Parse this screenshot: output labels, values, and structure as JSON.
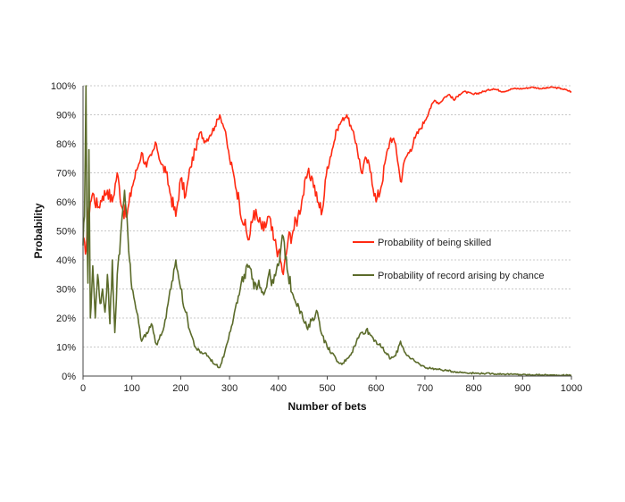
{
  "chart_data": {
    "type": "line",
    "xlabel": "Number of bets",
    "ylabel": "Probability",
    "xlim": [
      0,
      1000
    ],
    "ylim": [
      0,
      1
    ],
    "x_ticks": [
      0,
      100,
      200,
      300,
      400,
      500,
      600,
      700,
      800,
      900,
      1000
    ],
    "x_tick_labels": [
      "0",
      "100",
      "200",
      "300",
      "400",
      "500",
      "600",
      "700",
      "800",
      "900",
      "1000"
    ],
    "y_ticks": [
      0,
      0.1,
      0.2,
      0.3,
      0.4,
      0.5,
      0.6,
      0.7,
      0.8,
      0.9,
      1.0
    ],
    "y_tick_labels": [
      "0%",
      "10%",
      "20%",
      "30%",
      "40%",
      "50%",
      "60%",
      "70%",
      "80%",
      "90%",
      "100%"
    ],
    "grid": "horizontal",
    "legend_position": "right",
    "series": [
      {
        "name": "Probability of being skilled",
        "color": "#ff2a12",
        "x": [
          0,
          5,
          10,
          15,
          20,
          30,
          40,
          50,
          60,
          70,
          80,
          90,
          100,
          110,
          120,
          130,
          140,
          150,
          160,
          170,
          180,
          190,
          200,
          210,
          220,
          230,
          240,
          250,
          260,
          270,
          280,
          290,
          300,
          310,
          320,
          330,
          340,
          350,
          360,
          370,
          380,
          390,
          400,
          410,
          420,
          430,
          440,
          450,
          460,
          470,
          480,
          490,
          500,
          510,
          520,
          530,
          540,
          550,
          560,
          570,
          580,
          590,
          600,
          610,
          620,
          630,
          640,
          650,
          660,
          670,
          680,
          690,
          700,
          710,
          720,
          730,
          740,
          750,
          760,
          770,
          780,
          800,
          820,
          840,
          860,
          880,
          900,
          920,
          940,
          960,
          980,
          1000
        ],
        "y": [
          0.47,
          0.42,
          0.55,
          0.6,
          0.63,
          0.58,
          0.62,
          0.64,
          0.6,
          0.7,
          0.58,
          0.55,
          0.65,
          0.71,
          0.77,
          0.72,
          0.76,
          0.8,
          0.73,
          0.7,
          0.62,
          0.55,
          0.68,
          0.62,
          0.72,
          0.78,
          0.84,
          0.81,
          0.83,
          0.86,
          0.9,
          0.85,
          0.75,
          0.68,
          0.6,
          0.52,
          0.47,
          0.57,
          0.53,
          0.5,
          0.55,
          0.47,
          0.43,
          0.35,
          0.47,
          0.5,
          0.55,
          0.62,
          0.7,
          0.68,
          0.6,
          0.57,
          0.72,
          0.78,
          0.85,
          0.88,
          0.9,
          0.85,
          0.8,
          0.7,
          0.75,
          0.7,
          0.6,
          0.65,
          0.75,
          0.82,
          0.8,
          0.67,
          0.75,
          0.78,
          0.82,
          0.85,
          0.88,
          0.92,
          0.95,
          0.94,
          0.96,
          0.97,
          0.95,
          0.97,
          0.98,
          0.97,
          0.98,
          0.99,
          0.98,
          0.99,
          0.99,
          0.995,
          0.99,
          0.995,
          0.99,
          0.98
        ]
      },
      {
        "name": "Probability of record arising by chance",
        "color": "#5b6b2a",
        "x": [
          0,
          3,
          6,
          8,
          10,
          12,
          15,
          18,
          20,
          25,
          30,
          35,
          40,
          45,
          50,
          55,
          60,
          65,
          70,
          75,
          80,
          85,
          90,
          95,
          100,
          110,
          120,
          130,
          140,
          150,
          160,
          170,
          180,
          190,
          200,
          210,
          220,
          230,
          240,
          250,
          260,
          270,
          280,
          290,
          300,
          310,
          320,
          330,
          340,
          350,
          360,
          370,
          380,
          390,
          400,
          410,
          420,
          430,
          440,
          450,
          460,
          470,
          480,
          490,
          500,
          510,
          520,
          530,
          540,
          550,
          560,
          570,
          580,
          590,
          600,
          610,
          620,
          630,
          640,
          650,
          660,
          670,
          680,
          690,
          700,
          720,
          740,
          760,
          780,
          800,
          820,
          840,
          860,
          880,
          900,
          920,
          940,
          960,
          980,
          1000
        ],
        "y": [
          0.45,
          0.55,
          1.0,
          0.5,
          0.32,
          0.78,
          0.2,
          0.3,
          0.38,
          0.2,
          0.35,
          0.25,
          0.3,
          0.22,
          0.35,
          0.18,
          0.4,
          0.15,
          0.35,
          0.42,
          0.55,
          0.64,
          0.55,
          0.4,
          0.3,
          0.22,
          0.12,
          0.15,
          0.18,
          0.11,
          0.14,
          0.2,
          0.3,
          0.4,
          0.3,
          0.22,
          0.15,
          0.1,
          0.08,
          0.08,
          0.06,
          0.04,
          0.03,
          0.08,
          0.15,
          0.22,
          0.28,
          0.35,
          0.38,
          0.3,
          0.33,
          0.28,
          0.35,
          0.32,
          0.38,
          0.48,
          0.35,
          0.28,
          0.25,
          0.2,
          0.16,
          0.2,
          0.22,
          0.14,
          0.1,
          0.08,
          0.05,
          0.04,
          0.06,
          0.08,
          0.12,
          0.15,
          0.16,
          0.14,
          0.12,
          0.1,
          0.08,
          0.06,
          0.07,
          0.12,
          0.08,
          0.06,
          0.05,
          0.04,
          0.03,
          0.025,
          0.02,
          0.015,
          0.012,
          0.01,
          0.009,
          0.008,
          0.007,
          0.006,
          0.005,
          0.004,
          0.004,
          0.003,
          0.003,
          0.003
        ]
      }
    ]
  }
}
